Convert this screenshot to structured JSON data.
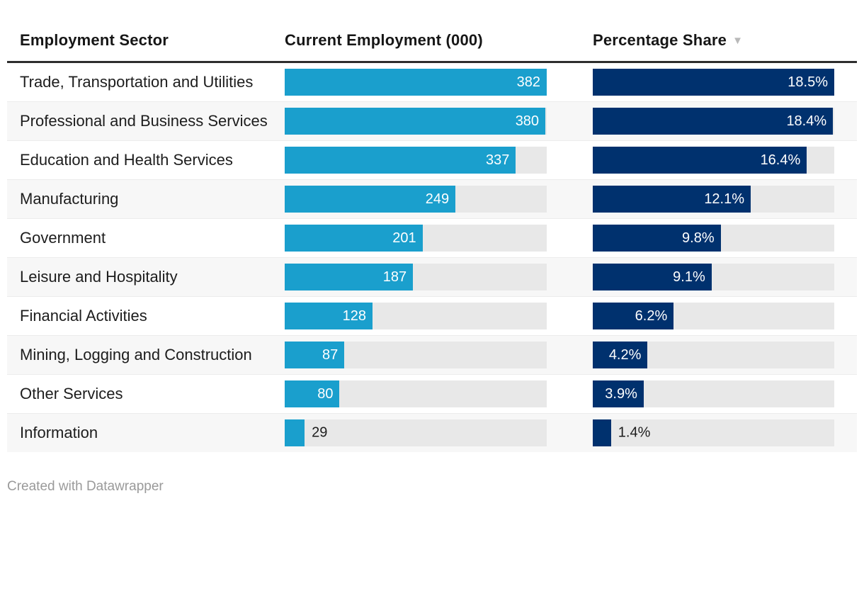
{
  "table": {
    "columns": [
      {
        "label": "Employment Sector"
      },
      {
        "label": "Current Employment (000)"
      },
      {
        "label": "Percentage Share"
      }
    ],
    "sort_icon": "▼",
    "sort": {
      "column": "Percentage Share",
      "direction": "descending"
    }
  },
  "chart_data": {
    "type": "table",
    "title": "",
    "categories": [
      "Trade, Transportation and Utilities",
      "Professional and Business Services",
      "Education and Health Services",
      "Manufacturing",
      "Government",
      "Leisure and Hospitality",
      "Financial Activities",
      "Mining, Logging and Construction",
      "Other Services",
      "Information"
    ],
    "series": [
      {
        "name": "Current Employment (000)",
        "display": "bar",
        "values": [
          382,
          380,
          337,
          249,
          201,
          187,
          128,
          87,
          80,
          29
        ],
        "max": 382,
        "value_format": "integer"
      },
      {
        "name": "Percentage Share",
        "display": "bar",
        "values": [
          18.5,
          18.4,
          16.4,
          12.1,
          9.8,
          9.1,
          6.2,
          4.2,
          3.9,
          1.4
        ],
        "max": 18.5,
        "unit": "%",
        "value_format": "one-decimal-percent"
      }
    ],
    "two_line_labels": [
      true,
      true,
      true,
      false,
      false,
      false,
      false,
      true,
      false,
      false
    ],
    "legend": "none",
    "grid": "off"
  },
  "colors": {
    "employment_bar": "#1a9fcd",
    "share_bar": "#00316e",
    "bar_track": "#e8e8e8",
    "alt_row_background": "#f7f7f7",
    "header_rule": "#2d2d2d",
    "text": "#1d1d1d",
    "muted_text": "#9a9a9a"
  },
  "footer": {
    "credit": "Created with Datawrapper"
  }
}
